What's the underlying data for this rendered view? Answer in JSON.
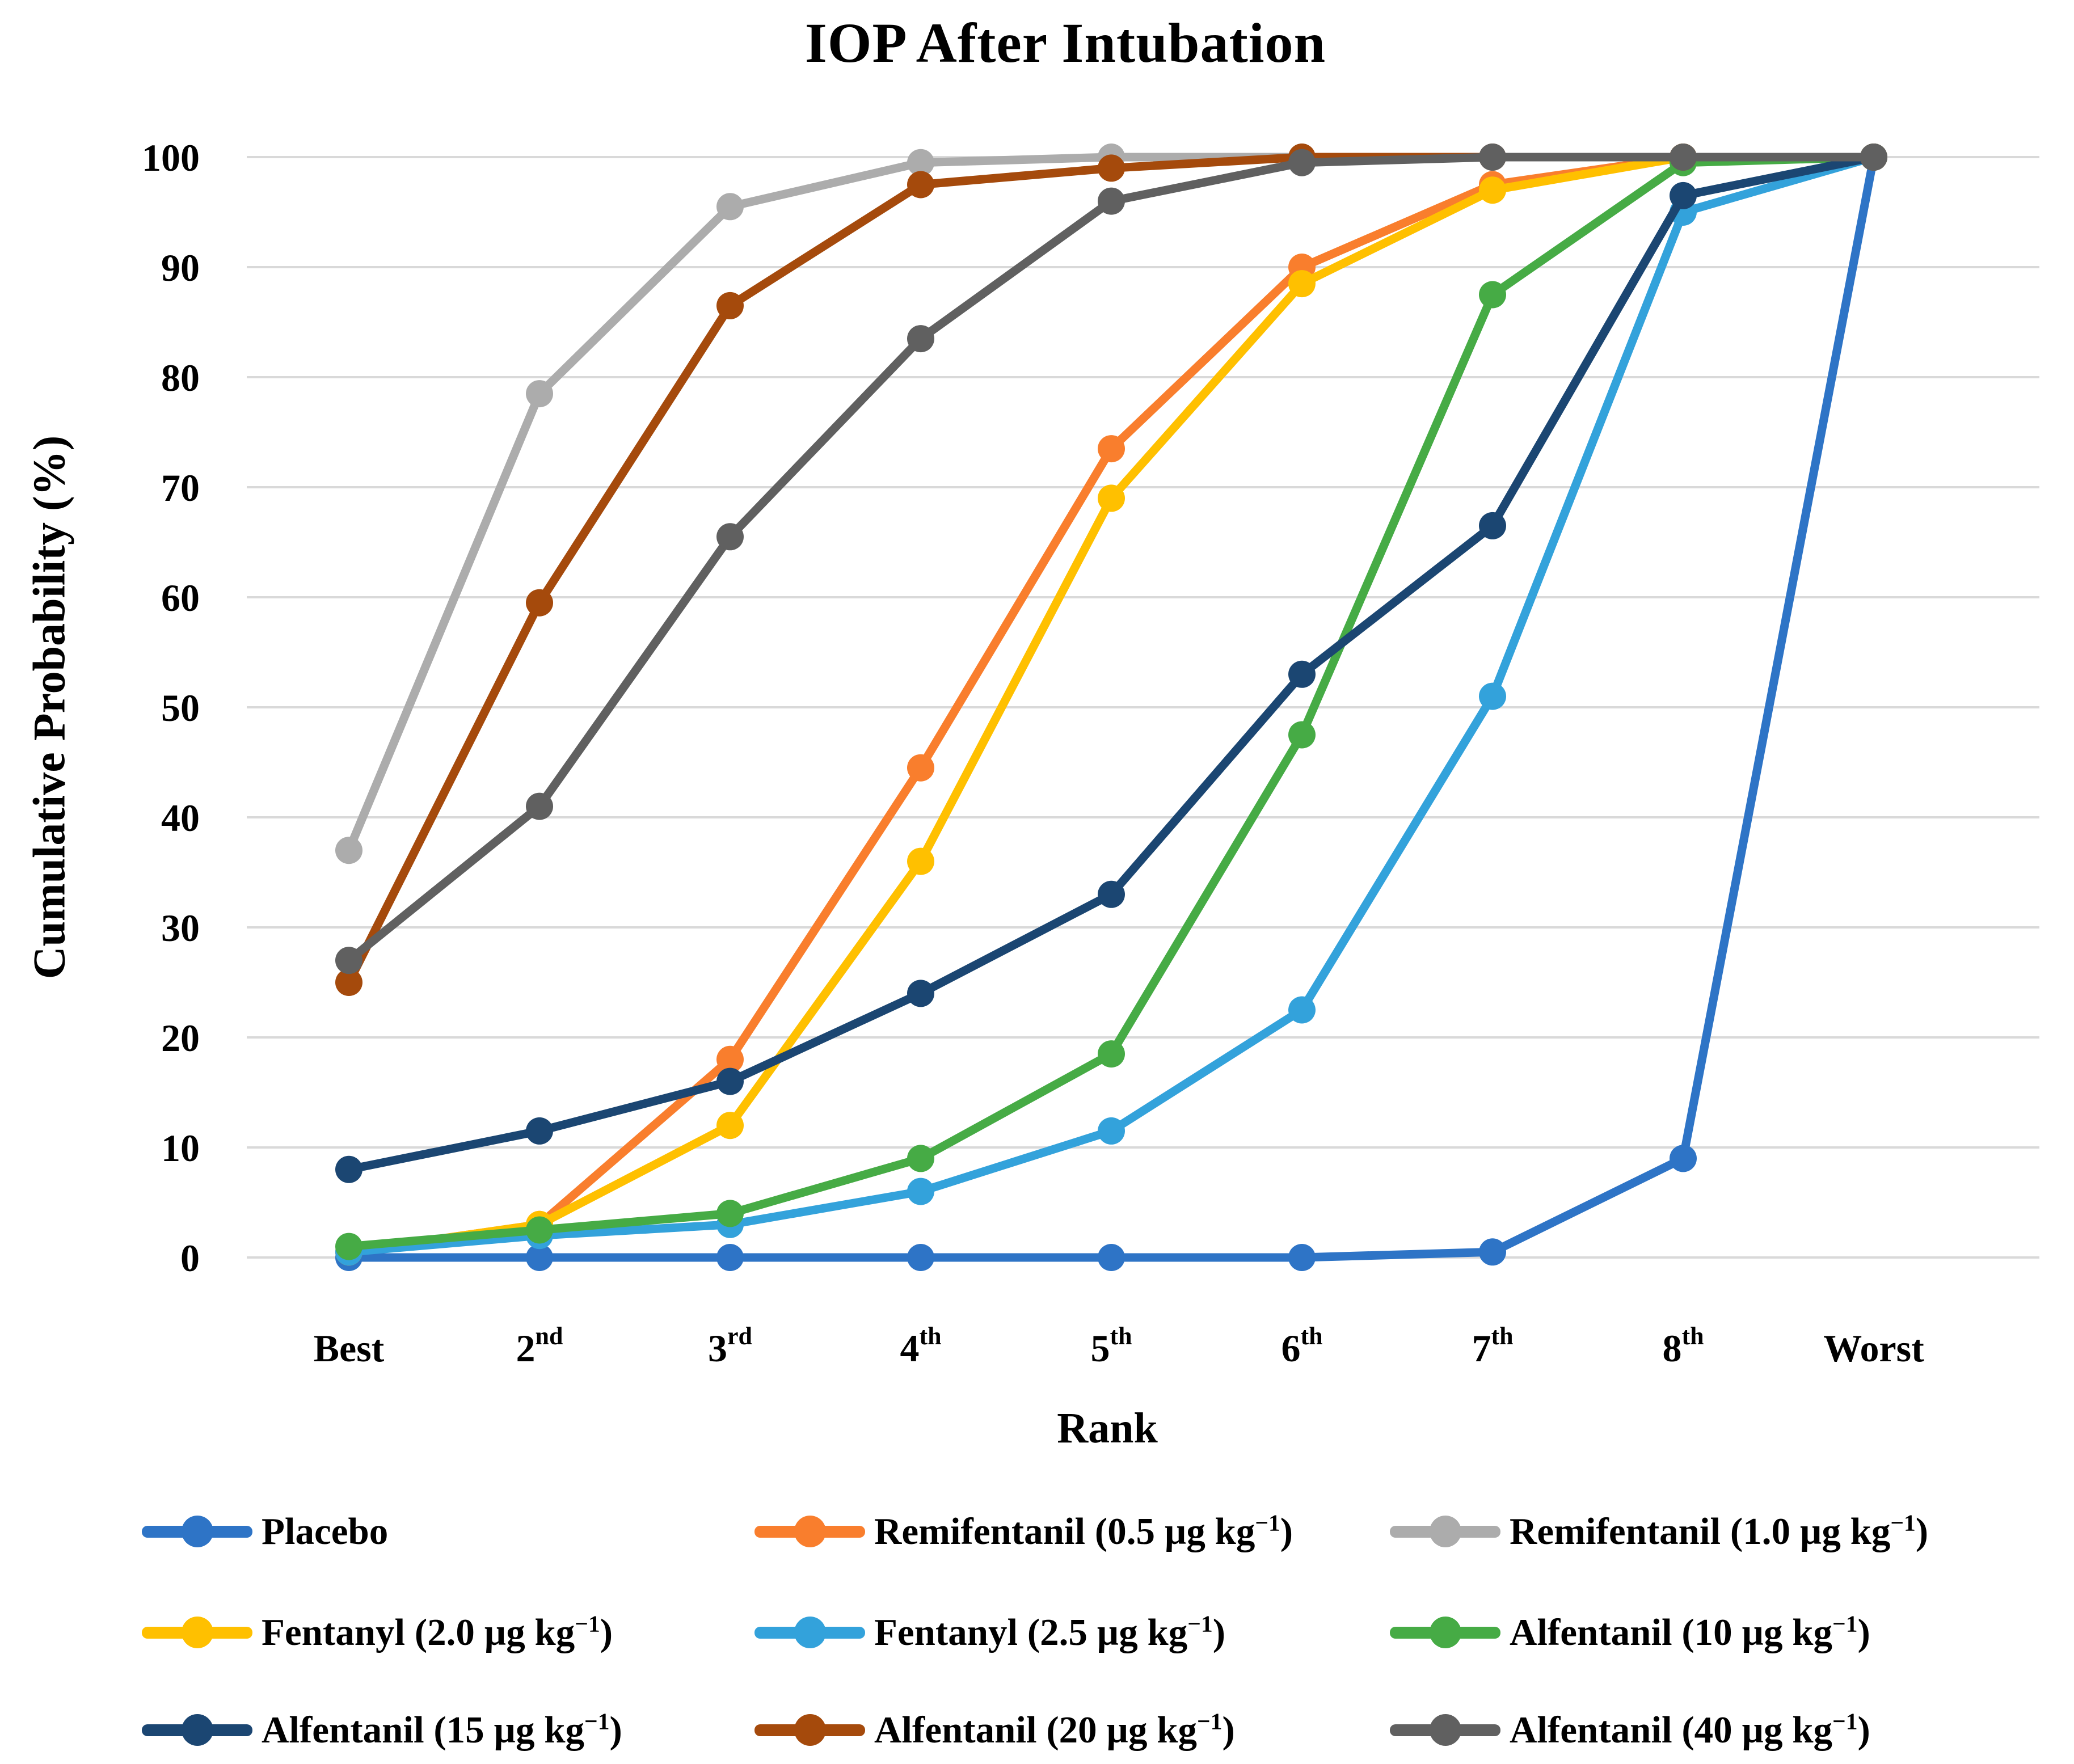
{
  "title": "IOP After Intubation",
  "y_axis": {
    "title": "Cumulative Probability (%)",
    "ticks": [
      0,
      10,
      20,
      30,
      40,
      50,
      60,
      70,
      80,
      90,
      100
    ],
    "min": 0,
    "max": 100
  },
  "x_axis": {
    "title": "Rank",
    "categories": [
      {
        "text": "Best",
        "sup": ""
      },
      {
        "text": "2",
        "sup": "nd"
      },
      {
        "text": "3",
        "sup": "rd"
      },
      {
        "text": "4",
        "sup": "th"
      },
      {
        "text": "5",
        "sup": "th"
      },
      {
        "text": "6",
        "sup": "th"
      },
      {
        "text": "7",
        "sup": "th"
      },
      {
        "text": "8",
        "sup": "th"
      },
      {
        "text": "Worst",
        "sup": ""
      }
    ]
  },
  "colors": {
    "background": "#FFFFFF",
    "gridline": "#D9D9D9",
    "text": "#000000"
  },
  "chart_data": {
    "type": "line",
    "x": [
      "Best",
      "2nd",
      "3rd",
      "4th",
      "5th",
      "6th",
      "7th",
      "8th",
      "Worst"
    ],
    "xlabel": "Rank",
    "ylabel": "Cumulative Probability (%)",
    "ylim": [
      0,
      100
    ],
    "grid": "horizontal",
    "legend_position": "bottom",
    "series": [
      {
        "id": "placebo",
        "label_main": "Placebo",
        "label_sup": "",
        "label_end": "",
        "color": "#2E74C6",
        "values": [
          0,
          0,
          0,
          0,
          0,
          0,
          0.5,
          9,
          100
        ]
      },
      {
        "id": "remifentanil-0-5",
        "label_main": "Remifentanil (0.5 µg kg",
        "label_sup": "−1",
        "label_end": ")",
        "color": "#F97E2D",
        "values": [
          0.5,
          3,
          18,
          44.5,
          73.5,
          90,
          97.5,
          100,
          100
        ]
      },
      {
        "id": "remifentanil-1-0",
        "label_main": "Remifentanil (1.0 µg kg",
        "label_sup": "−1",
        "label_end": ")",
        "color": "#ACACAC",
        "values": [
          37,
          78.5,
          95.5,
          99.5,
          100,
          100,
          100,
          100,
          100
        ]
      },
      {
        "id": "fentanyl-2-0",
        "label_main": "Fentanyl (2.0 µg kg",
        "label_sup": "−1",
        "label_end": ")",
        "color": "#FFC000",
        "values": [
          0.5,
          3,
          12,
          36,
          69,
          88.5,
          97,
          100,
          100
        ]
      },
      {
        "id": "fentanyl-2-5",
        "label_main": "Fentanyl (2.5 µg kg",
        "label_sup": "−1",
        "label_end": ")",
        "color": "#33A2DB",
        "values": [
          0.5,
          2,
          3,
          6,
          11.5,
          22.5,
          51,
          95,
          100
        ]
      },
      {
        "id": "alfentanil-10",
        "label_main": "Alfentanil (10 µg kg",
        "label_sup": "−1",
        "label_end": ")",
        "color": "#46AB45",
        "values": [
          1,
          2.5,
          4,
          9,
          18.5,
          47.5,
          87.5,
          99.5,
          100
        ]
      },
      {
        "id": "alfentanil-15",
        "label_main": "Alfentanil (15 µg kg",
        "label_sup": "−1",
        "label_end": ")",
        "color": "#1B4672",
        "values": [
          8,
          11.5,
          16,
          24,
          33,
          53,
          66.5,
          96.5,
          100
        ]
      },
      {
        "id": "alfentanil-20",
        "label_main": "Alfentanil (20 µg kg",
        "label_sup": "−1",
        "label_end": ")",
        "color": "#A54A0C",
        "values": [
          25,
          59.5,
          86.5,
          97.5,
          99,
          100,
          100,
          100,
          100
        ]
      },
      {
        "id": "alfentanil-40",
        "label_main": "Alfentanil (40 µg kg",
        "label_sup": "−1",
        "label_end": ")",
        "color": "#606060",
        "values": [
          27,
          41,
          65.5,
          83.5,
          96,
          99.5,
          100,
          100,
          100
        ]
      }
    ]
  }
}
